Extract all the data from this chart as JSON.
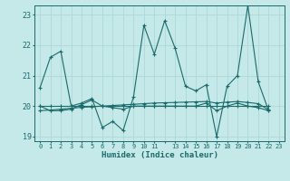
{
  "xlabel": "Humidex (Indice chaleur)",
  "background_color": "#c5e8e8",
  "line_color": "#1a6b6b",
  "grid_color": "#b0d8d8",
  "xlim": [
    -0.5,
    23.5
  ],
  "ylim": [
    18.85,
    23.3
  ],
  "yticks": [
    19,
    20,
    21,
    22,
    23
  ],
  "xtick_labels": [
    "0",
    "1",
    "2",
    "3",
    "4",
    "5",
    "6",
    "7",
    "8",
    "9",
    "10",
    "11",
    "",
    "13",
    "14",
    "15",
    "16",
    "17",
    "18",
    "19",
    "20",
    "21",
    "22",
    "23"
  ],
  "series1": [
    20.6,
    21.6,
    21.8,
    20.0,
    20.1,
    20.25,
    19.3,
    19.5,
    19.2,
    20.3,
    22.65,
    21.7,
    22.8,
    21.9,
    20.65,
    20.5,
    20.7,
    19.0,
    20.65,
    21.0,
    23.3,
    20.8,
    19.85
  ],
  "series2": [
    20.0,
    19.85,
    19.85,
    19.9,
    20.05,
    20.2,
    20.0,
    19.95,
    19.9,
    20.0,
    20.0,
    20.0,
    20.0,
    20.0,
    20.0,
    20.0,
    20.1,
    19.85,
    20.0,
    20.1,
    20.0,
    19.95,
    19.85
  ],
  "series3_flat": [
    20.0,
    20.0,
    20.0,
    20.0,
    20.0,
    20.0,
    20.0,
    20.0,
    20.0,
    20.0,
    20.0,
    20.0,
    20.0,
    20.0,
    20.0,
    20.0,
    20.0,
    20.0,
    20.0,
    20.0,
    20.0,
    20.0,
    20.0
  ],
  "series4_trend": [
    19.85,
    19.87,
    19.9,
    19.93,
    19.96,
    19.98,
    20.0,
    20.02,
    20.04,
    20.06,
    20.08,
    20.1,
    20.11,
    20.12,
    20.13,
    20.14,
    20.15,
    20.1,
    20.13,
    20.15,
    20.12,
    20.08,
    19.88
  ]
}
